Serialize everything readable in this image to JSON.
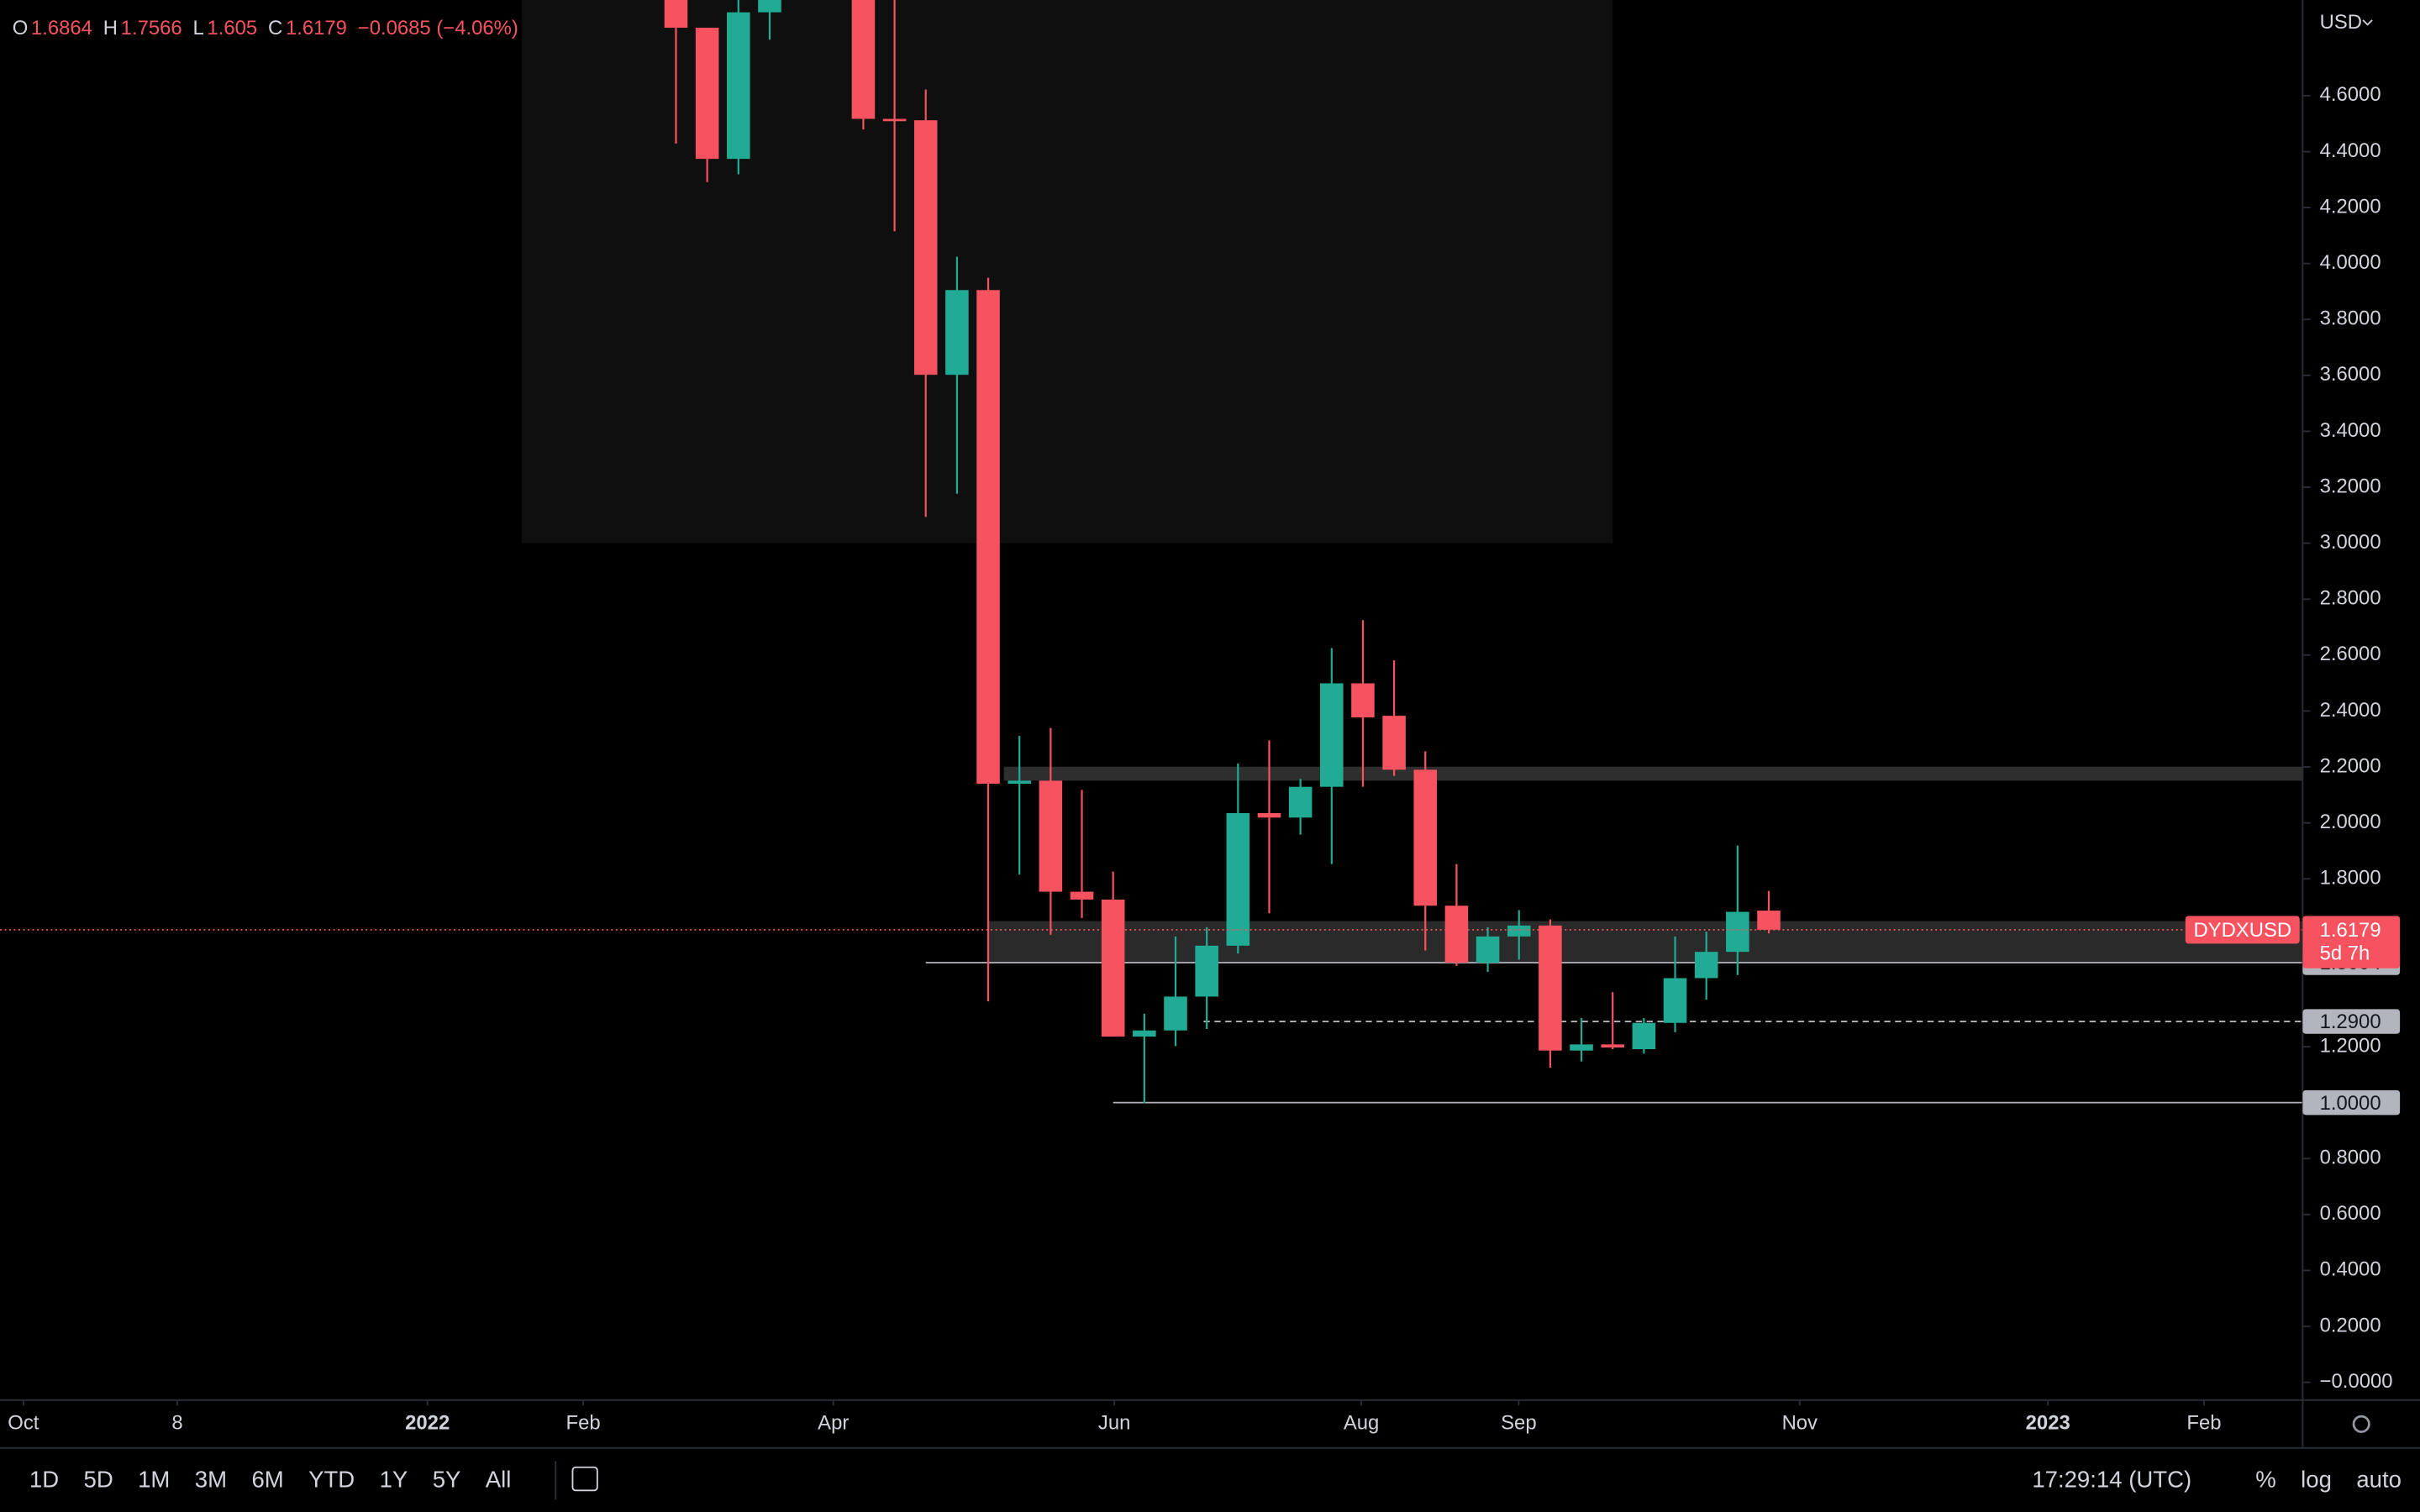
{
  "chart_data": {
    "type": "candlestick",
    "symbol": "DYDXUSD",
    "currency": "USD",
    "countdown": "5d 7h",
    "ohlc_labels": [
      "O",
      "H",
      "L",
      "C"
    ],
    "change_label": "−0.0685 (−4.06%)",
    "up_color": "#22ab94",
    "down_color": "#f7525f",
    "categories": [
      null,
      null,
      null,
      null,
      null,
      null,
      null,
      null,
      null,
      null,
      null,
      null,
      null,
      null,
      null,
      null,
      null,
      null,
      null,
      null,
      null,
      null,
      null,
      null,
      null,
      null,
      null,
      null,
      null,
      null,
      null,
      null,
      null,
      null,
      null,
      null
    ],
    "open": [
      5.0,
      4.843,
      4.374,
      4.898,
      null,
      null,
      5.0,
      4.517,
      4.512,
      3.602,
      3.905,
      2.14,
      2.151,
      1.754,
      1.726,
      1.236,
      1.258,
      1.379,
      1.561,
      2.035,
      2.019,
      2.129,
      2.499,
      2.383,
      2.19,
      1.704,
      1.5,
      1.594,
      1.633,
      1.186,
      1.208,
      1.191,
      1.285,
      1.445,
      1.539,
      1.6864
    ],
    "high": [
      5.0,
      4.843,
      5.0,
      5.0,
      null,
      null,
      5.0,
      5.0,
      4.622,
      4.024,
      3.949,
      2.311,
      2.339,
      2.118,
      1.826,
      1.318,
      1.594,
      1.627,
      2.212,
      2.295,
      2.157,
      2.625,
      2.725,
      2.581,
      2.256,
      1.853,
      1.627,
      1.688,
      1.655,
      1.302,
      1.395,
      1.302,
      1.594,
      1.611,
      1.919,
      1.7566
    ],
    "low": [
      4.429,
      4.291,
      4.319,
      4.8,
      null,
      null,
      4.479,
      4.115,
      3.094,
      3.177,
      1.362,
      1.815,
      1.6,
      1.66,
      1.236,
      0.998,
      1.202,
      1.263,
      1.533,
      1.677,
      1.958,
      1.853,
      2.129,
      2.168,
      1.544,
      1.489,
      1.467,
      1.511,
      1.125,
      1.147,
      1.191,
      1.175,
      1.252,
      1.368,
      1.456,
      1.605
    ],
    "close": [
      4.843,
      4.374,
      4.898,
      5.0,
      null,
      null,
      4.517,
      4.512,
      3.602,
      3.905,
      2.14,
      2.151,
      1.754,
      1.726,
      1.236,
      1.258,
      1.379,
      1.561,
      2.035,
      2.019,
      2.129,
      2.499,
      2.377,
      2.19,
      1.704,
      1.5,
      1.594,
      1.633,
      1.186,
      1.208,
      1.197,
      1.285,
      1.445,
      1.539,
      1.682,
      1.6179
    ],
    "xlim": [
      -21.65,
      52.1
    ],
    "xticks": [
      {
        "value": -20.9,
        "label": "Oct"
      },
      {
        "value": -15.97,
        "label": "8"
      },
      {
        "value": -7.96,
        "label": "2022"
      },
      {
        "value": -2.97,
        "label": "Feb"
      },
      {
        "value": 5.04,
        "label": "Apr"
      },
      {
        "value": 14.04,
        "label": "Jun"
      },
      {
        "value": 21.95,
        "label": "Aug"
      },
      {
        "value": 26.99,
        "label": "Sep"
      },
      {
        "value": 35.99,
        "label": "Nov"
      },
      {
        "value": 43.94,
        "label": "2023"
      },
      {
        "value": 48.94,
        "label": "Feb"
      }
    ],
    "ylim": [
      -0.061,
      4.942
    ],
    "yticks": [
      {
        "value": 0,
        "label": "−0.0000"
      },
      {
        "value": 0.2,
        "label": "0.2000"
      },
      {
        "value": 0.4,
        "label": "0.4000"
      },
      {
        "value": 0.6,
        "label": "0.6000"
      },
      {
        "value": 0.8,
        "label": "0.8000"
      },
      {
        "value": 1.2,
        "label": "1.2000"
      },
      {
        "value": 1.8,
        "label": "1.8000"
      },
      {
        "value": 2,
        "label": "2.0000"
      },
      {
        "value": 2.2,
        "label": "2.2000"
      },
      {
        "value": 2.4,
        "label": "2.4000"
      },
      {
        "value": 2.6,
        "label": "2.6000"
      },
      {
        "value": 2.8,
        "label": "2.8000"
      },
      {
        "value": 3,
        "label": "3.0000"
      },
      {
        "value": 3.2,
        "label": "3.2000"
      },
      {
        "value": 3.4,
        "label": "3.4000"
      },
      {
        "value": 3.6,
        "label": "3.6000"
      },
      {
        "value": 3.8,
        "label": "3.8000"
      },
      {
        "value": 4,
        "label": "4.0000"
      },
      {
        "value": 4.2,
        "label": "4.2000"
      },
      {
        "value": 4.4,
        "label": "4.4000"
      },
      {
        "value": 4.6,
        "label": "4.6000"
      }
    ],
    "levels": [
      {
        "value": 1.5004,
        "start": 8,
        "dashed": false
      },
      {
        "value": 1.29,
        "label": "1.2900",
        "start": 16.9,
        "dashed": true
      },
      {
        "value": 1,
        "label": "1.0000",
        "start": 14,
        "dashed": false
      }
    ],
    "zones": [
      {
        "range": [
          3.0,
          5.0
        ],
        "x": [
          -4.94,
          30.0
        ],
        "color": "#0f0f0f"
      },
      {
        "range": [
          1.5,
          1.649
        ],
        "x": [
          10,
          52.1
        ],
        "color": "#2a2a2a"
      },
      {
        "range": [
          2.151,
          2.201
        ],
        "x": [
          10.5,
          52.1
        ],
        "color": "#2e2e2e"
      }
    ]
  },
  "toolbar": {
    "ranges": [
      "1D",
      "5D",
      "1M",
      "3M",
      "6M",
      "YTD",
      "1Y",
      "5Y",
      "All"
    ],
    "time": "17:29:14 (UTC)",
    "options": [
      "%",
      "log",
      "auto"
    ]
  }
}
